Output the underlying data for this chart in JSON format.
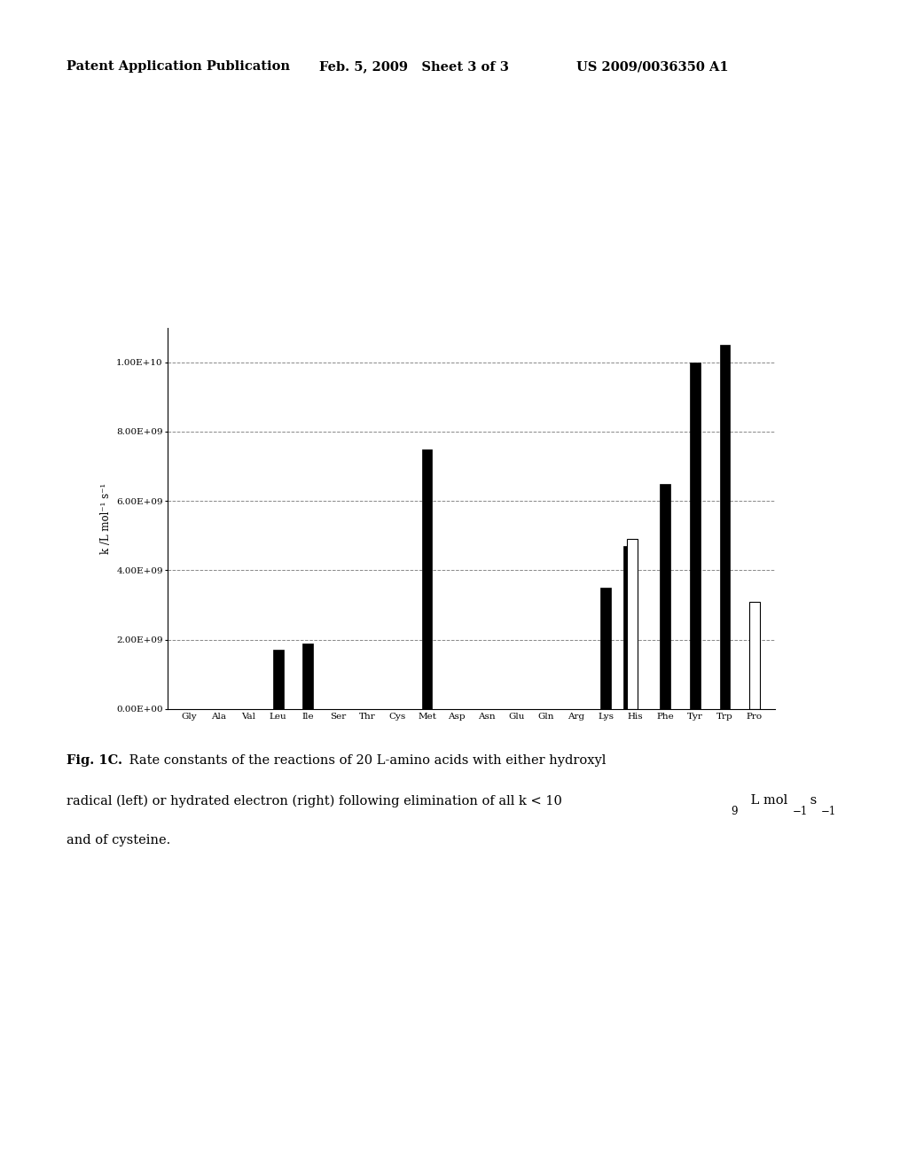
{
  "amino_acids": [
    "Gly",
    "Ala",
    "Val",
    "Leu",
    "Ile",
    "Ser",
    "Thr",
    "Cys",
    "Met",
    "Asp",
    "Asn",
    "Glu",
    "Gln",
    "Arg",
    "Lys",
    "His",
    "Phe",
    "Tyr",
    "Trp",
    "Pro"
  ],
  "bar1_values": [
    0,
    0,
    0,
    1700000000.0,
    1900000000.0,
    0,
    0,
    0,
    7500000000.0,
    0,
    0,
    0,
    0,
    0,
    3500000000.0,
    4700000000.0,
    6500000000.0,
    10000000000.0,
    10500000000.0,
    0
  ],
  "bar2_values": [
    0,
    0,
    0,
    0,
    0,
    0,
    0,
    0,
    0,
    0,
    0,
    0,
    0,
    0,
    0,
    4900000000.0,
    0,
    0,
    0,
    3100000000.0
  ],
  "bar1_color": "#000000",
  "bar2_color": "#ffffff",
  "bar2_edgecolor": "#000000",
  "ylim": [
    0,
    11000000000.0
  ],
  "yticks": [
    0,
    2000000000.0,
    4000000000.0,
    6000000000.0,
    8000000000.0,
    10000000000.0
  ],
  "ytick_labels": [
    "0.00E+00",
    "2.00E+09",
    "4.00E+09",
    "6.00E+09",
    "8.00E+09",
    "1.00E+10"
  ],
  "ylabel": "k /L mol⁻¹ s⁻¹",
  "background_color": "#ffffff",
  "header_left": "Patent Application Publication",
  "header_mid": "Feb. 5, 2009   Sheet 3 of 3",
  "header_right": "US 2009/0036350 A1",
  "grid_color": "#888888",
  "grid_linestyle": "--",
  "bar_width": 0.35,
  "bar_gap": 0.12
}
